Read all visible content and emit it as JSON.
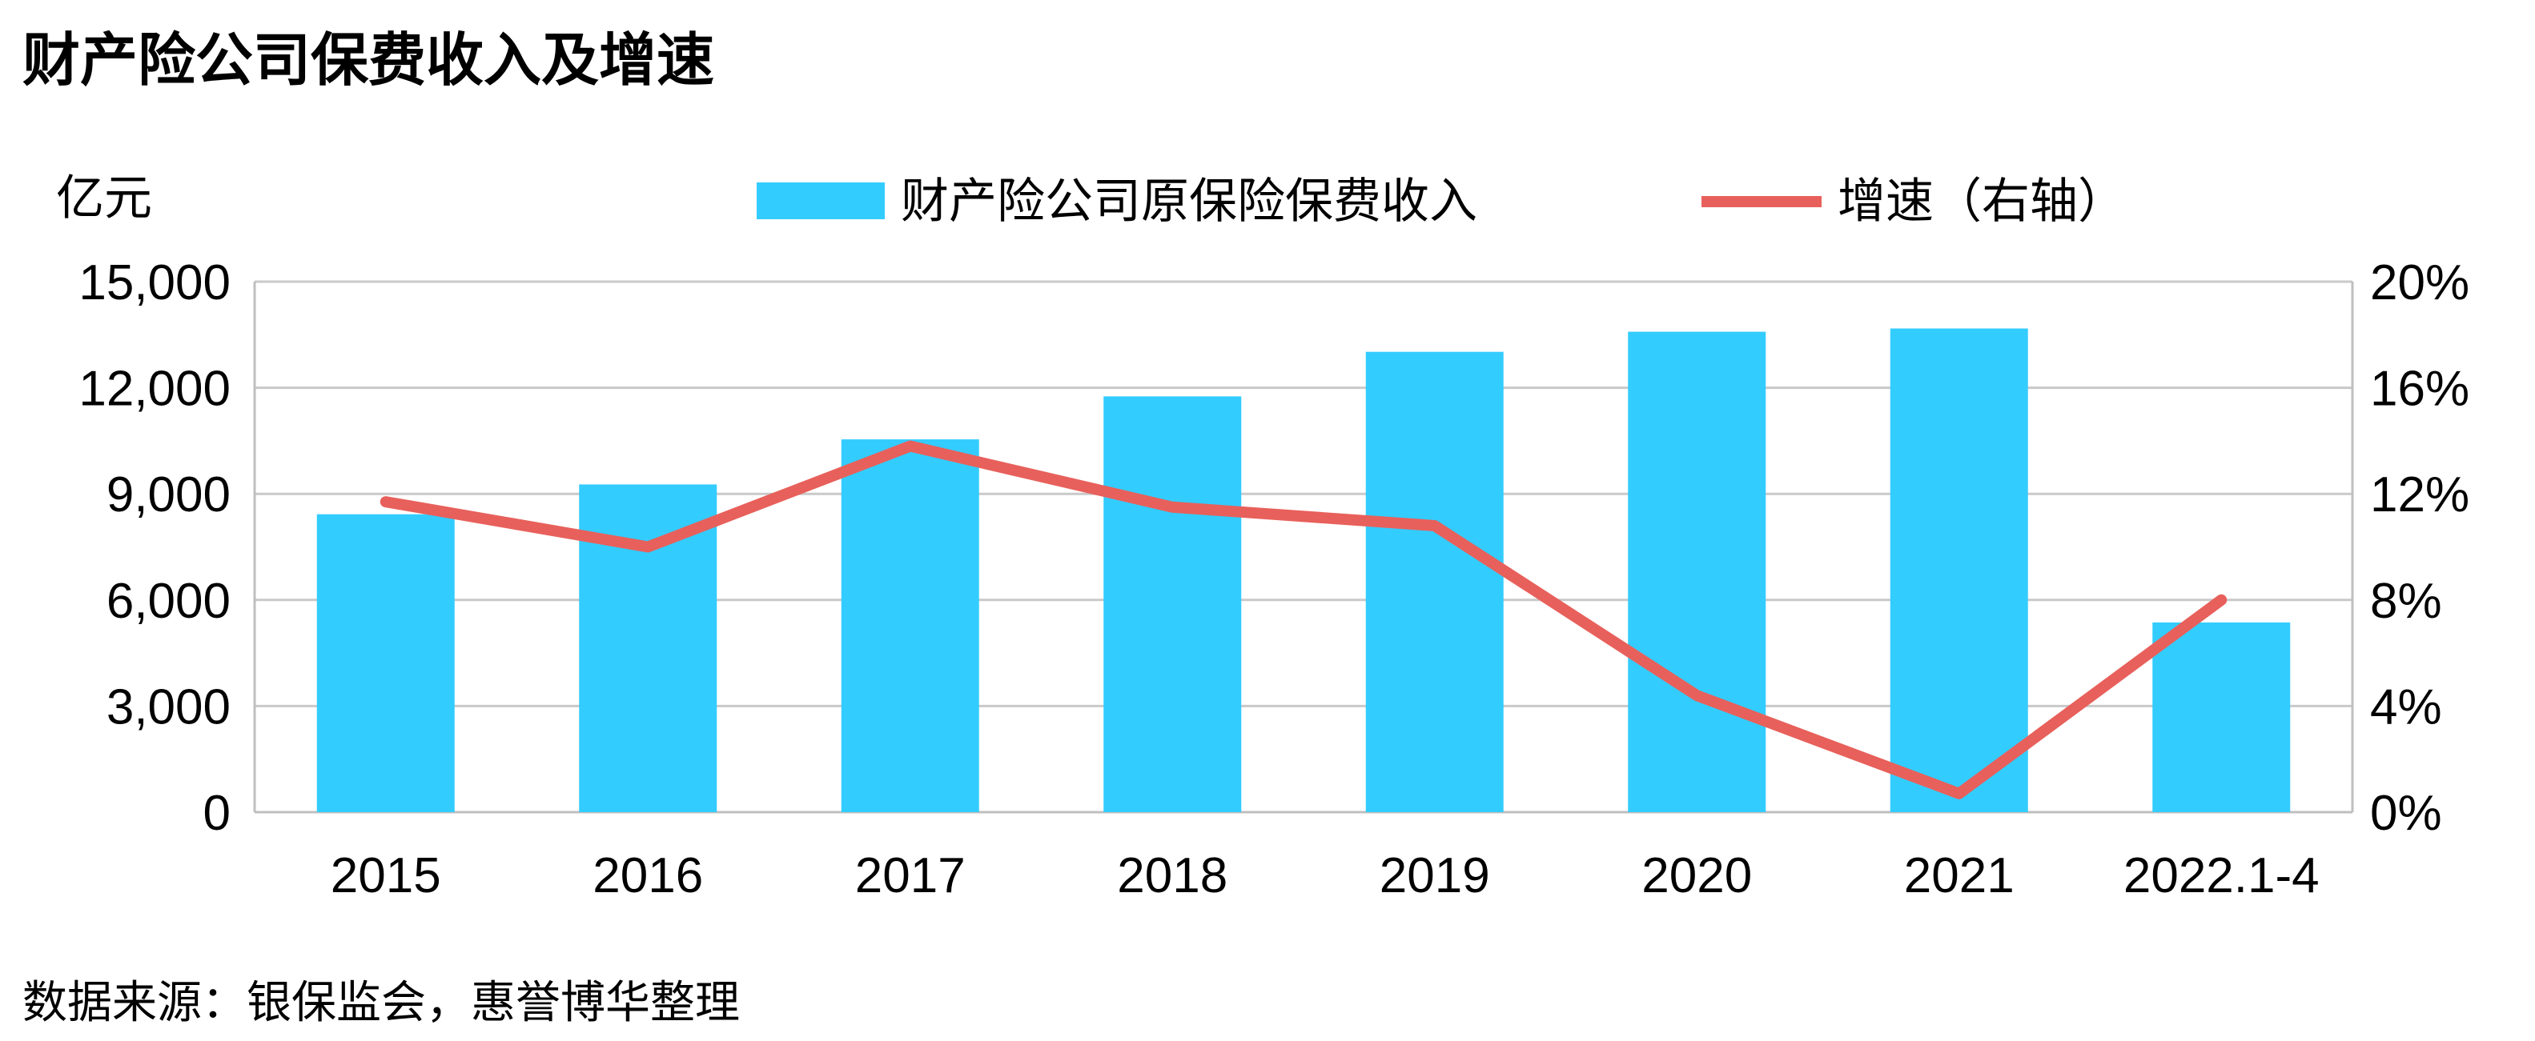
{
  "chart_data": {
    "type": "bar+line",
    "title": "财产险公司保费收入及增速",
    "y_left_unit": "亿元",
    "categories": [
      "2015",
      "2016",
      "2017",
      "2018",
      "2019",
      "2020",
      "2021",
      "2022.1-4"
    ],
    "series": [
      {
        "name": "财产险公司原保险保费收入",
        "type": "bar",
        "axis": "left",
        "values": [
          8423,
          9266,
          10541,
          11756,
          13016,
          13584,
          13676,
          5364
        ]
      },
      {
        "name": "增速（右轴）",
        "type": "line",
        "axis": "right",
        "values": [
          11.7,
          10.0,
          13.8,
          11.5,
          10.8,
          4.4,
          0.7,
          8.0
        ]
      }
    ],
    "y_left": {
      "min": 0,
      "max": 15000,
      "ticks": [
        "0",
        "3,000",
        "6,000",
        "9,000",
        "12,000",
        "15,000"
      ]
    },
    "y_right": {
      "min": 0,
      "max": 20,
      "ticks": [
        "0%",
        "4%",
        "8%",
        "12%",
        "16%",
        "20%"
      ]
    },
    "grid": true,
    "legend_position": "top",
    "colors": {
      "bar": "#33CCFF",
      "line": "#E8605B",
      "grid": "#c9c9c9",
      "axis": "#bfbfbf"
    },
    "source": "数据来源：银保监会，惠誉博华整理"
  }
}
